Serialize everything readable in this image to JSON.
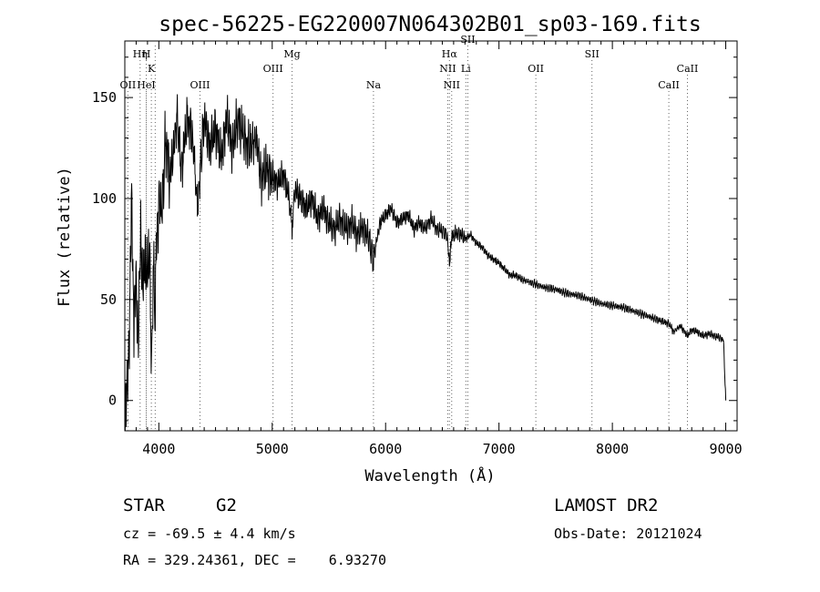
{
  "chart_data": {
    "type": "line",
    "title": "spec-56225-EG220007N064302B01_sp03-169.fits",
    "xlabel": "Wavelength (Å)",
    "ylabel": "Flux (relative)",
    "xlim": [
      3700,
      9100
    ],
    "ylim": [
      -15,
      178
    ],
    "x_ticks": [
      4000,
      5000,
      6000,
      7000,
      8000,
      9000
    ],
    "y_ticks": [
      0,
      50,
      100,
      150
    ],
    "grid": false,
    "series": [
      {
        "x": [
          3700,
          3720,
          3740,
          3760,
          3780,
          3800,
          3820,
          3840,
          3860,
          3880,
          3900,
          3920,
          3935,
          3950,
          3968,
          3980,
          4000,
          4030,
          4060,
          4101,
          4130,
          4160,
          4200,
          4250,
          4300,
          4340,
          4400,
          4450,
          4500,
          4550,
          4600,
          4650,
          4700,
          4750,
          4800,
          4861,
          4900,
          4950,
          5000,
          5050,
          5100,
          5150,
          5175,
          5200,
          5250,
          5300,
          5350,
          5400,
          5450,
          5500,
          5550,
          5600,
          5650,
          5700,
          5750,
          5800,
          5850,
          5893,
          5950,
          6000,
          6050,
          6100,
          6150,
          6200,
          6250,
          6300,
          6350,
          6400,
          6450,
          6500,
          6540,
          6563,
          6580,
          6600,
          6650,
          6700,
          6750,
          6800,
          6850,
          6900,
          6950,
          7000,
          7050,
          7100,
          7150,
          7200,
          7300,
          7400,
          7500,
          7600,
          7700,
          7800,
          7900,
          8000,
          8100,
          8200,
          8300,
          8400,
          8498,
          8542,
          8600,
          8662,
          8700,
          8750,
          8800,
          8850,
          8900,
          8950,
          8980,
          9000
        ],
        "values": [
          -10,
          5,
          35,
          100,
          40,
          60,
          30,
          85,
          55,
          70,
          60,
          75,
          10,
          65,
          45,
          80,
          100,
          95,
          130,
          110,
          125,
          140,
          115,
          140,
          130,
          95,
          140,
          125,
          135,
          120,
          140,
          125,
          140,
          130,
          125,
          130,
          110,
          115,
          110,
          108,
          112,
          100,
          85,
          105,
          100,
          95,
          100,
          90,
          95,
          88,
          85,
          90,
          85,
          88,
          82,
          86,
          80,
          70,
          88,
          92,
          95,
          88,
          90,
          92,
          85,
          88,
          85,
          90,
          85,
          84,
          82,
          68,
          80,
          82,
          83,
          80,
          82,
          78,
          76,
          72,
          70,
          68,
          65,
          62,
          62,
          60,
          58,
          56,
          55,
          53,
          52,
          50,
          48,
          47,
          46,
          44,
          42,
          40,
          38,
          34,
          37,
          32,
          35,
          34,
          32,
          33,
          32,
          31,
          30,
          0
        ]
      }
    ],
    "lines": [
      {
        "label": "OII",
        "x": 3727,
        "row": 3
      },
      {
        "label": "Hη",
        "x": 3835,
        "row": 1
      },
      {
        "label": "H",
        "x": 3889,
        "row": 1
      },
      {
        "label": "HeI",
        "x": 3889,
        "row": 3
      },
      {
        "label": "K",
        "x": 3934,
        "row": 2
      },
      {
        "label": "",
        "x": 3968,
        "row": 0
      },
      {
        "label": "OIII",
        "x": 4363,
        "row": 3
      },
      {
        "label": "OIII",
        "x": 5007,
        "row": 2
      },
      {
        "label": "Mg",
        "x": 5175,
        "row": 1
      },
      {
        "label": "Na",
        "x": 5893,
        "row": 3
      },
      {
        "label": "Hα",
        "x": 6563,
        "row": 1
      },
      {
        "label": "NII",
        "x": 6548,
        "row": 2
      },
      {
        "label": "NII",
        "x": 6583,
        "row": 3
      },
      {
        "label": "Li",
        "x": 6708,
        "row": 2
      },
      {
        "label": "OII",
        "x": 7325,
        "row": 2
      },
      {
        "label": "SII",
        "x": 6725,
        "row": 0
      },
      {
        "label": "SII",
        "x": 7820,
        "row": 1
      },
      {
        "label": "CaII",
        "x": 8498,
        "row": 3
      },
      {
        "label": "CaII",
        "x": 8662,
        "row": 2
      }
    ]
  },
  "info": {
    "class": "STAR",
    "subclass": "G2",
    "survey": "LAMOST DR2",
    "cz": "cz = -69.5 ± 4.4 km/s",
    "obs_date": "Obs-Date: 20121024",
    "coords": "RA = 329.24361, DEC =    6.93270"
  }
}
